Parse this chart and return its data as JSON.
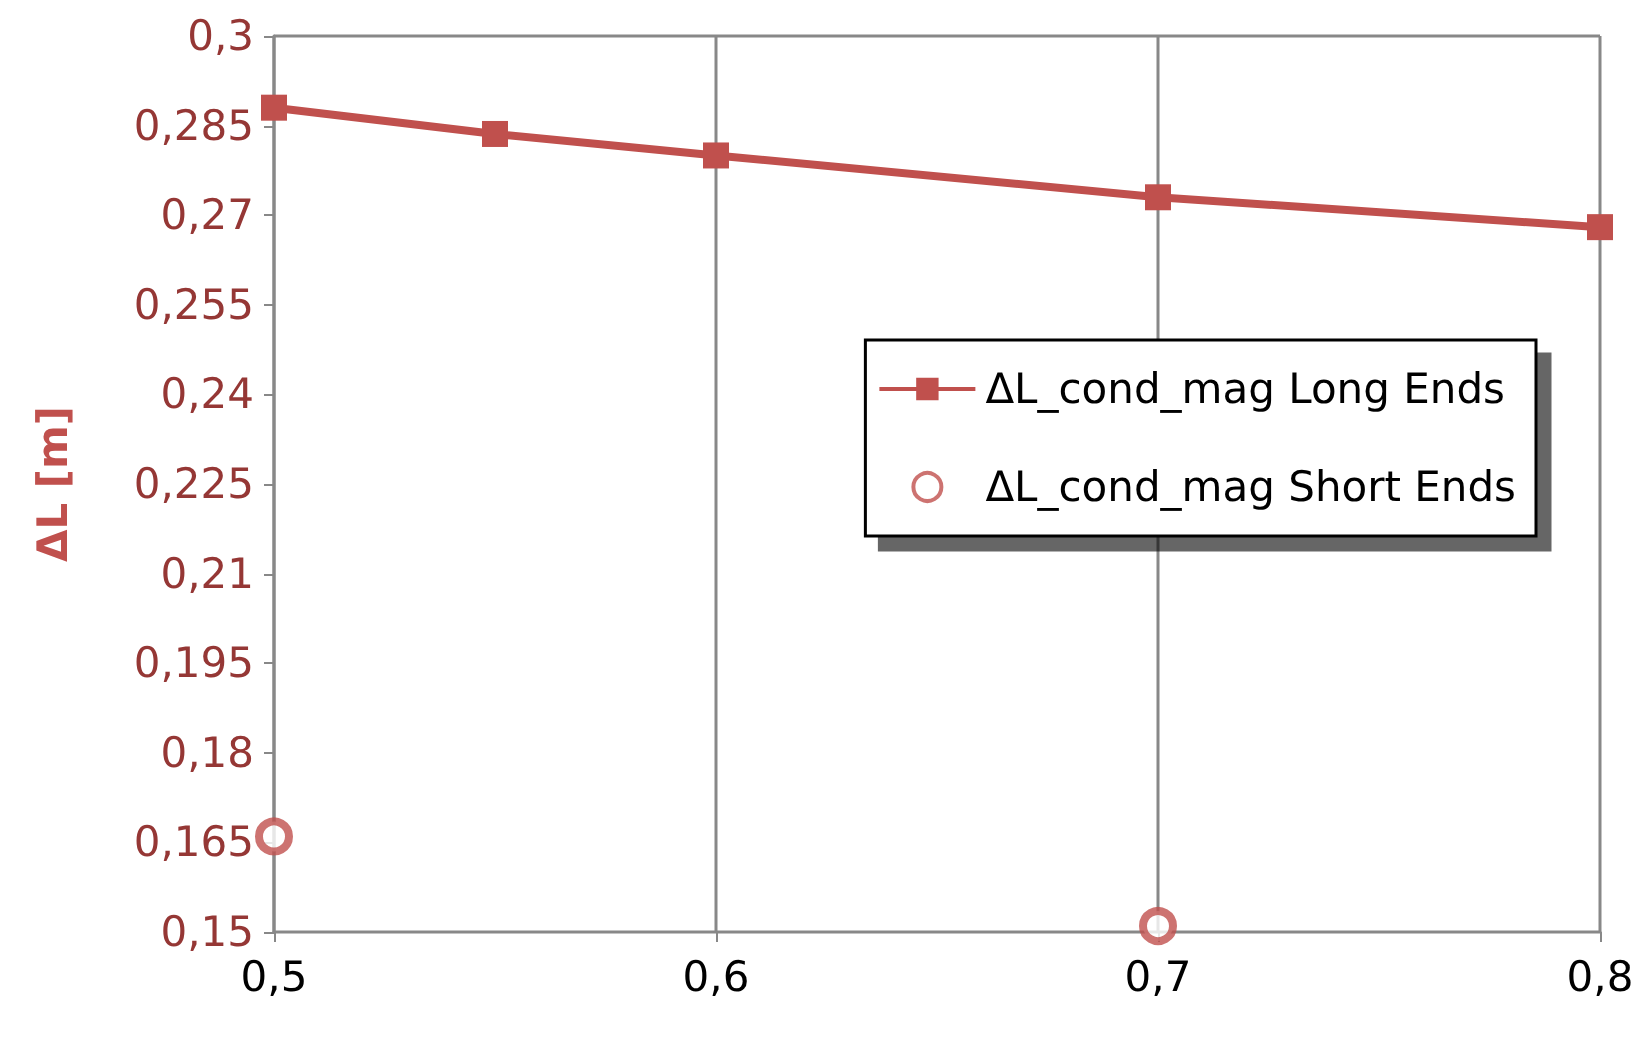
{
  "chart_data": {
    "type": "line",
    "ylabel": "ΔL [m]",
    "x": [
      0.5,
      0.55,
      0.6,
      0.7,
      0.8
    ],
    "series": [
      {
        "name": "ΔL_cond_mag Long Ends",
        "marker": "square",
        "color": "#c0504d",
        "values": [
          0.288,
          0.2836,
          0.28,
          0.273,
          0.268
        ]
      },
      {
        "name": "ΔL_cond_mag Short Ends",
        "type": "scatter",
        "marker": "circle",
        "color": "#c0504d",
        "x": [
          0.5,
          0.7
        ],
        "values": [
          0.166,
          0.151
        ]
      }
    ],
    "xlim": [
      0.5,
      0.8
    ],
    "xticks": [
      {
        "value": 0.5,
        "label": "0,5"
      },
      {
        "value": 0.6,
        "label": "0,6"
      },
      {
        "value": 0.7,
        "label": "0,7"
      },
      {
        "value": 0.8,
        "label": "0,8"
      }
    ],
    "ylim": [
      0.15,
      0.3
    ],
    "yticks": [
      {
        "value": 0.15,
        "label": "0,15"
      },
      {
        "value": 0.165,
        "label": "0,165"
      },
      {
        "value": 0.18,
        "label": "0,18"
      },
      {
        "value": 0.195,
        "label": "0,195"
      },
      {
        "value": 0.21,
        "label": "0,21"
      },
      {
        "value": 0.225,
        "label": "0,225"
      },
      {
        "value": 0.24,
        "label": "0,24"
      },
      {
        "value": 0.255,
        "label": "0,255"
      },
      {
        "value": 0.27,
        "label": "0,27"
      },
      {
        "value": 0.285,
        "label": "0,285"
      },
      {
        "value": 0.3,
        "label": "0,3"
      }
    ],
    "grid": "x",
    "legend": "right"
  }
}
